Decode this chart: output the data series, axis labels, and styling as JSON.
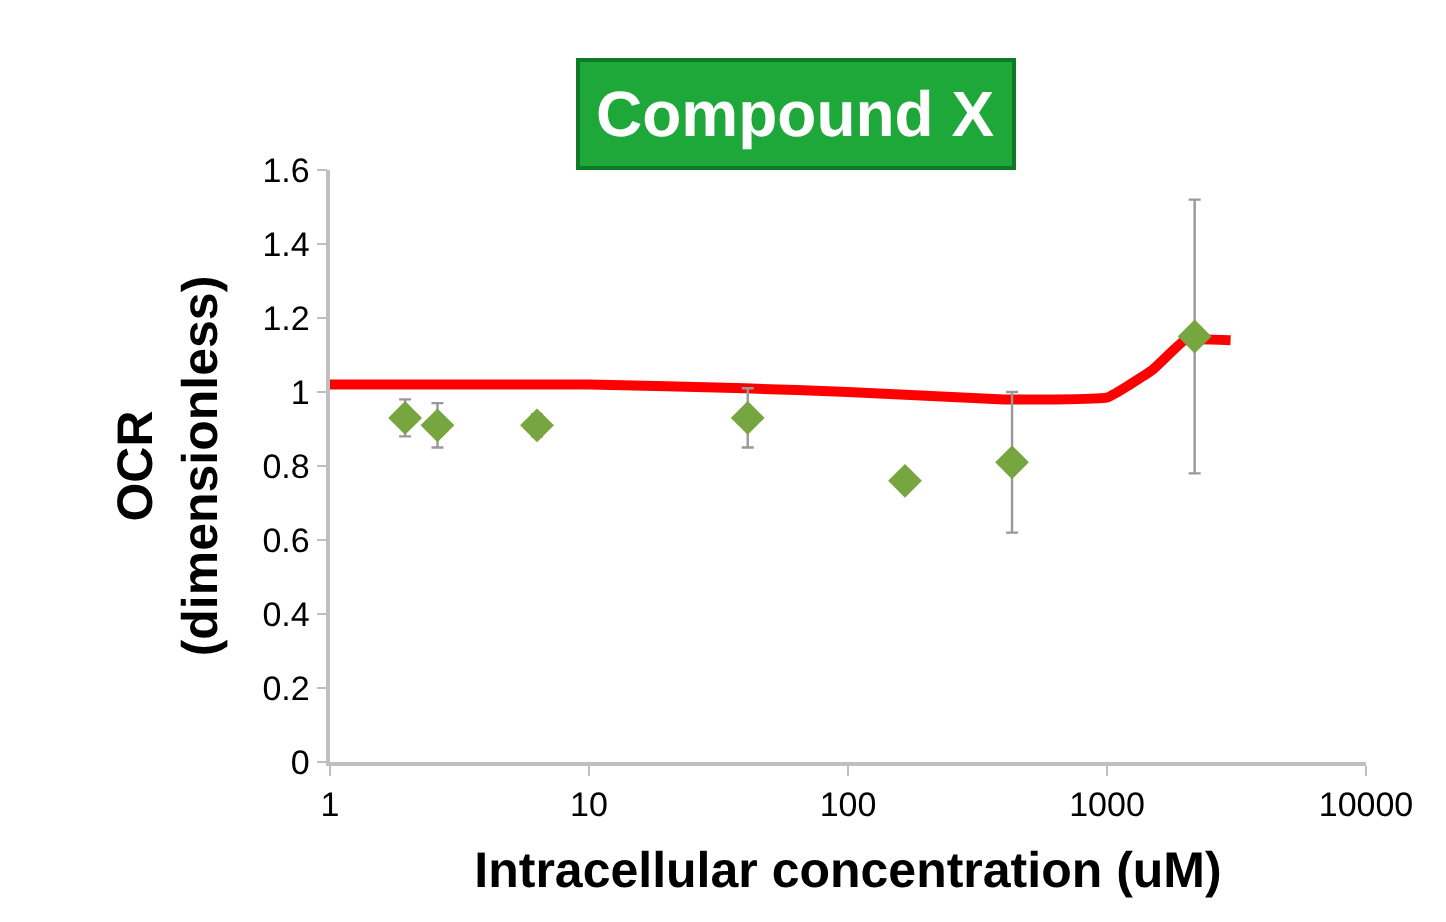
{
  "chart_data": {
    "type": "scatter",
    "title": "Compound X",
    "xlabel": "Intracellular concentration (uM)",
    "ylabel": "OCR\n(dimensionless)",
    "log": "x",
    "xlim": [
      1,
      10000
    ],
    "xticks": [
      1,
      10,
      100,
      1000,
      10000
    ],
    "ylim": [
      0,
      1.6
    ],
    "yticks": [
      0,
      0.2,
      0.4,
      0.6,
      0.8,
      1,
      1.2,
      1.4,
      1.6
    ],
    "series": [
      {
        "type": "line",
        "color": "#ff0000",
        "marker": "none",
        "x": [
          1,
          10,
          40,
          100,
          400,
          1000,
          1500,
          2000,
          3000
        ],
        "values": [
          1.02,
          1.02,
          1.01,
          1.0,
          0.98,
          0.985,
          1.06,
          1.14,
          1.14
        ]
      },
      {
        "color": "#77a540",
        "marker": "diamond",
        "x": [
          1.95,
          2.6,
          6.3,
          41,
          166,
          430,
          2180
        ],
        "values": [
          0.93,
          0.91,
          0.91,
          0.93,
          0.76,
          0.81,
          1.15
        ],
        "errors": [
          0.05,
          0.06,
          0.03,
          0.08,
          null,
          0.19,
          0.37
        ]
      }
    ]
  }
}
